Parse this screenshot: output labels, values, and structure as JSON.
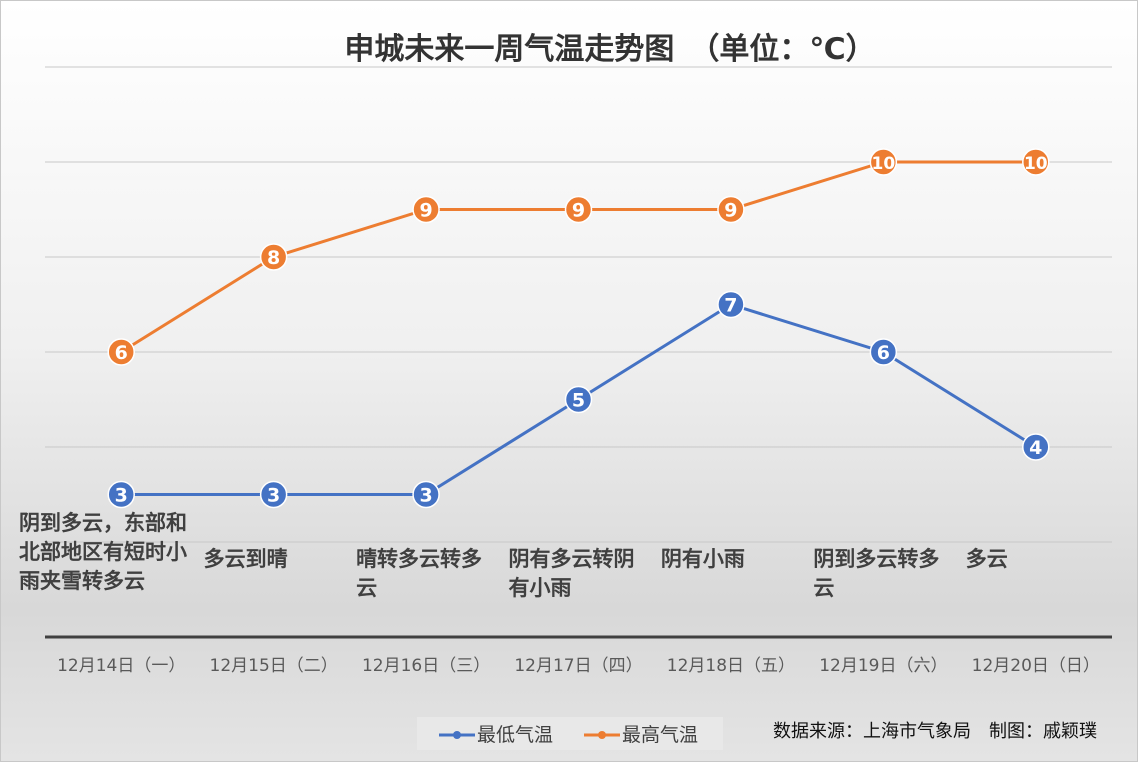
{
  "chart_data": {
    "type": "line",
    "title": "申城未来一周气温走势图　（单位：℃）",
    "categories": [
      "12月14日（一）",
      "12月15日（二）",
      "12月16日（三）",
      "12月17日（四）",
      "12月18日（五）",
      "12月19日（六）",
      "12月20日（日）"
    ],
    "conditions": [
      "阴到多云，东部和北部地区有短时小雨夹雪转多云",
      "多云到晴",
      "晴转多云转多云",
      "阴有多云转阴有小雨",
      "阴有小雨",
      "阴到多云转多云",
      "多云"
    ],
    "series": [
      {
        "name": "最低气温",
        "color": "#4472c4",
        "values": [
          3,
          3,
          3,
          5,
          7,
          6,
          4
        ]
      },
      {
        "name": "最高气温",
        "color": "#ed7d31",
        "values": [
          6,
          8,
          9,
          9,
          9,
          10,
          10
        ]
      }
    ],
    "ylim": [
      0,
      12
    ],
    "gridlines": [
      2,
      4,
      6,
      8,
      10,
      12
    ],
    "grid": true,
    "legend": "bottom"
  },
  "footer": {
    "source": "数据来源：上海市气象局　制图：戚颖璞"
  }
}
